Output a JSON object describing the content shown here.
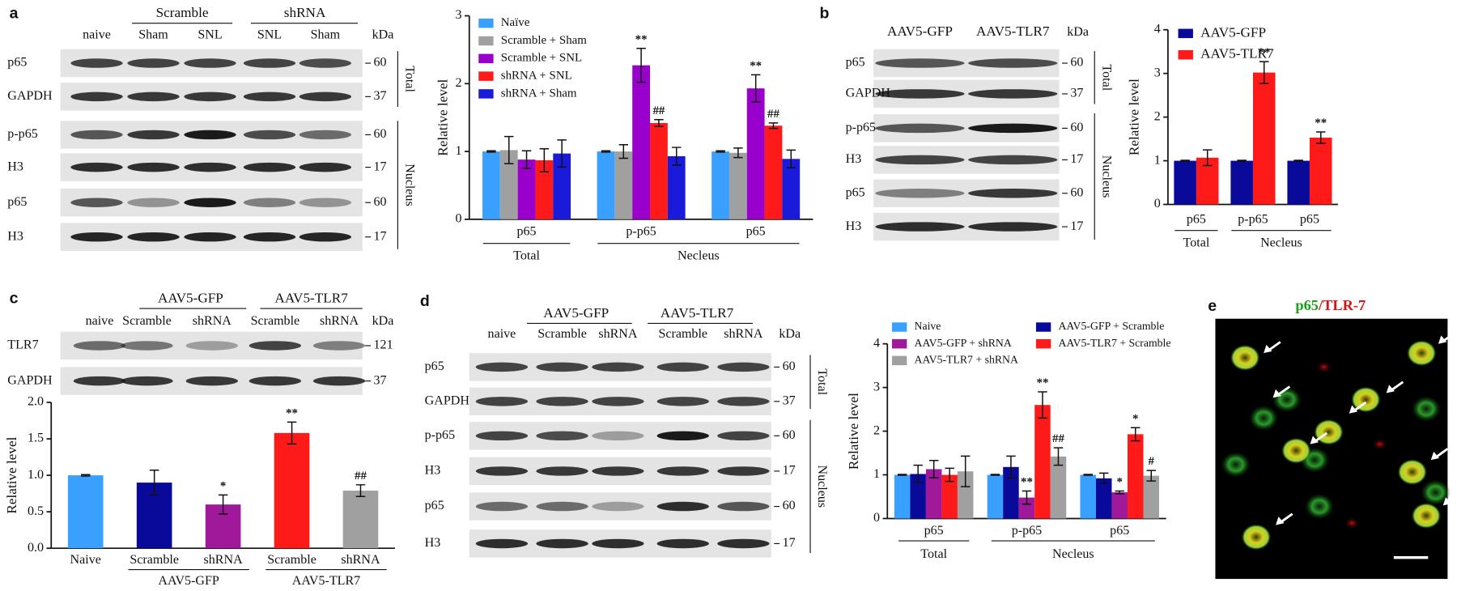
{
  "panel_labels": [
    "a",
    "b",
    "c",
    "d",
    "e"
  ],
  "blots": [
    {
      "group_labels": [
        "Scramble",
        "shRNA"
      ],
      "lanes": [
        "naive",
        "Sham",
        "SNL",
        "SNL",
        "Sham"
      ],
      "unit": "kDa",
      "rows": [
        {
          "label": "p65",
          "kda": 60
        },
        {
          "label": "GAPDH",
          "kda": 37
        },
        {
          "label": "p-p65",
          "kda": 60
        },
        {
          "label": "H3",
          "kda": 17
        },
        {
          "label": "p65",
          "kda": 60
        },
        {
          "label": "H3",
          "kda": 17
        }
      ],
      "sections": [
        "Total",
        "Nucleus"
      ]
    },
    {
      "lanes": [
        "AAV5-GFP",
        "AAV5-TLR7"
      ],
      "unit": "kDa",
      "rows": [
        {
          "label": "p65",
          "kda": 60
        },
        {
          "label": "GAPDH",
          "kda": 37
        },
        {
          "label": "p-p65",
          "kda": 60
        },
        {
          "label": "H3",
          "kda": 17
        },
        {
          "label": "p65",
          "kda": 60
        },
        {
          "label": "H3",
          "kda": 17
        }
      ],
      "sections": [
        "Total",
        "Nucleus"
      ]
    },
    {
      "group_labels": [
        "AAV5-GFP",
        "AAV5-TLR7"
      ],
      "lanes": [
        "naive",
        "Scramble",
        "shRNA",
        "Scramble",
        "shRNA"
      ],
      "unit": "kDa",
      "rows": [
        {
          "label": "TLR7",
          "kda": 121
        },
        {
          "label": "GAPDH",
          "kda": 37
        }
      ]
    },
    {
      "group_labels": [
        "AAV5-GFP",
        "AAV5-TLR7"
      ],
      "lanes": [
        "naive",
        "Scramble",
        "shRNA",
        "Scramble",
        "shRNA"
      ],
      "unit": "kDa",
      "rows": [
        {
          "label": "p65",
          "kda": 60
        },
        {
          "label": "GAPDH",
          "kda": 37
        },
        {
          "label": "p-p65",
          "kda": 60
        },
        {
          "label": "H3",
          "kda": 17
        },
        {
          "label": "p65",
          "kda": 60
        },
        {
          "label": "H3",
          "kda": 17
        }
      ],
      "sections": [
        "Total",
        "Nucleus"
      ]
    }
  ],
  "chart_data": [
    {
      "type": "bar",
      "y_label": "Relative level",
      "categories": [
        "p65",
        "p-p65",
        "p65"
      ],
      "category_groups": [
        {
          "label": "Total",
          "span": 1
        },
        {
          "label": "Necleus",
          "span": 2
        }
      ],
      "ylim": [
        0,
        3
      ],
      "yticks": [
        0,
        1,
        2,
        3
      ],
      "legend": "upper-left",
      "series": [
        {
          "name": "Naïve",
          "color": "#3aa0ff",
          "values": [
            1,
            1,
            1
          ],
          "errors": [
            0.01,
            0.01,
            0.01
          ]
        },
        {
          "name": "Scramble + Sham",
          "color": "#a0a0a0",
          "values": [
            1.02,
            1.0,
            0.98
          ],
          "errors": [
            0.2,
            0.1,
            0.07
          ]
        },
        {
          "name": "Scramble + SNL",
          "color": "#9900cc",
          "values": [
            0.88,
            2.27,
            1.93
          ],
          "errors": [
            0.13,
            0.25,
            0.2
          ],
          "annotations": [
            null,
            "**",
            "**"
          ]
        },
        {
          "name": "shRNA + SNL",
          "color": "#ff1a1a",
          "values": [
            0.87,
            1.42,
            1.38
          ],
          "errors": [
            0.17,
            0.05,
            0.04
          ],
          "annotations": [
            null,
            "##",
            "##"
          ]
        },
        {
          "name": "shRNA + Sham",
          "color": "#1a1adb",
          "values": [
            0.97,
            0.93,
            0.89
          ],
          "errors": [
            0.2,
            0.13,
            0.13
          ]
        }
      ]
    },
    {
      "type": "bar",
      "y_label": "Relative level",
      "categories": [
        "p65",
        "p-p65",
        "p65"
      ],
      "category_groups": [
        {
          "label": "Total",
          "span": 1
        },
        {
          "label": "Necleus",
          "span": 2
        }
      ],
      "ylim": [
        0,
        4
      ],
      "yticks": [
        0,
        1,
        2,
        3,
        4
      ],
      "legend": "upper-left",
      "series": [
        {
          "name": "AAV5-GFP",
          "color": "#0a0a9a",
          "values": [
            1,
            1,
            1
          ],
          "errors": [
            0.01,
            0.01,
            0.01
          ]
        },
        {
          "name": "AAV5-TLR7",
          "color": "#ff1a1a",
          "values": [
            1.07,
            3.02,
            1.53
          ],
          "errors": [
            0.18,
            0.25,
            0.13
          ],
          "annotations": [
            null,
            "**",
            "**"
          ]
        }
      ]
    },
    {
      "type": "bar",
      "y_label": "Relative level",
      "categories": [
        "Naive",
        "Scramble",
        "shRNA",
        "Scramble",
        "shRNA"
      ],
      "category_groups": [
        {
          "label": null,
          "span": 1
        },
        {
          "label": "AAV5-GFP",
          "span": 2
        },
        {
          "label": "AAV5-TLR7",
          "span": 2
        }
      ],
      "ylim": [
        0,
        2
      ],
      "yticks": [
        {
          "value": 0,
          "label": "0.0"
        },
        {
          "value": 0.5,
          "label": "0.5"
        },
        {
          "value": 1,
          "label": "1.0"
        },
        {
          "value": 1.5,
          "label": "1.5"
        },
        {
          "value": 2,
          "label": "2.0"
        }
      ],
      "values": [
        1.0,
        0.9,
        0.6,
        1.58,
        0.79
      ],
      "errors": [
        0.01,
        0.17,
        0.13,
        0.15,
        0.08
      ],
      "colors": [
        "#3aa0ff",
        "#0a0a9a",
        "#a0199b",
        "#ff1a1a",
        "#a0a0a0"
      ],
      "annotations": [
        null,
        null,
        "*",
        "**",
        "##"
      ]
    },
    {
      "type": "bar",
      "y_label": "Relative level",
      "categories": [
        "p65",
        "p-p65",
        "p65"
      ],
      "category_groups": [
        {
          "label": "Total",
          "span": 1
        },
        {
          "label": "Necleus",
          "span": 2
        }
      ],
      "ylim": [
        0,
        4
      ],
      "yticks": [
        0,
        1,
        2,
        3,
        4
      ],
      "legend": "top",
      "legend_columns": 2,
      "series": [
        {
          "name": "Naive",
          "color": "#3aa0ff",
          "values": [
            1,
            1,
            1
          ],
          "errors": [
            0.01,
            0.01,
            0.01
          ]
        },
        {
          "name": "AAV5-GFP + Scramble",
          "color": "#0a0a9a",
          "values": [
            1.02,
            1.18,
            0.92
          ],
          "errors": [
            0.2,
            0.25,
            0.12
          ]
        },
        {
          "name": "AAV5-GFP + shRNA",
          "color": "#a0199b",
          "values": [
            1.13,
            0.48,
            0.6
          ],
          "errors": [
            0.2,
            0.15,
            0.03
          ],
          "annotations": [
            null,
            "**",
            "*"
          ]
        },
        {
          "name": "AAV5-TLR7 + Scramble",
          "color": "#ff1a1a",
          "values": [
            1.0,
            2.6,
            1.93
          ],
          "errors": [
            0.15,
            0.3,
            0.15
          ],
          "annotations": [
            null,
            "**",
            "*"
          ]
        },
        {
          "name": "AAV5-TLR7 + shRNA",
          "color": "#a0a0a0",
          "values": [
            1.08,
            1.42,
            0.98
          ],
          "errors": [
            0.35,
            0.2,
            0.12
          ],
          "annotations": [
            null,
            "##",
            "#"
          ]
        }
      ]
    }
  ],
  "image_title": [
    "p65",
    "/",
    "TLR-7"
  ]
}
